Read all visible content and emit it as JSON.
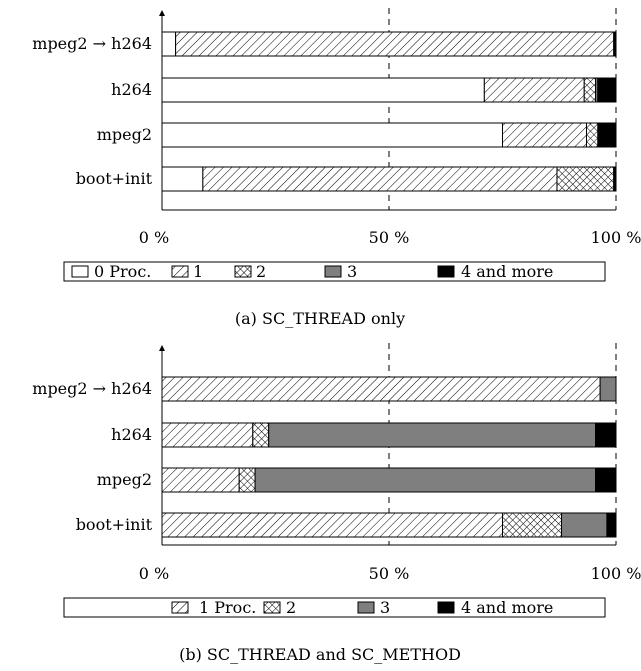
{
  "chart_data": [
    {
      "type": "bar",
      "orientation": "horizontal",
      "stacked": true,
      "caption": "(a) SC_THREAD only",
      "categories": [
        "mpeg2 → h264",
        "h264",
        "mpeg2",
        "boot+init"
      ],
      "xticks": [
        "0 %",
        "50 %",
        "100 %"
      ],
      "xlim": [
        0,
        100
      ],
      "legend_placement": "bottom",
      "series": [
        {
          "name": "0 Proc.",
          "pattern": "white",
          "values": [
            3,
            71,
            75,
            9
          ]
        },
        {
          "name": "1",
          "pattern": "hatch",
          "values": [
            96.5,
            22,
            18.5,
            78
          ]
        },
        {
          "name": "2",
          "pattern": "crosshatch",
          "values": [
            0,
            2.5,
            2.5,
            12.5
          ]
        },
        {
          "name": "3",
          "pattern": "gray",
          "values": [
            0,
            0.5,
            0,
            0
          ]
        },
        {
          "name": "4 and more",
          "pattern": "black",
          "values": [
            0.5,
            4,
            4,
            0.5
          ]
        }
      ]
    },
    {
      "type": "bar",
      "orientation": "horizontal",
      "stacked": true,
      "caption": "(b) SC_THREAD and SC_METHOD",
      "categories": [
        "mpeg2 → h264",
        "h264",
        "mpeg2",
        "boot+init"
      ],
      "xticks": [
        "0 %",
        "50 %",
        "100 %"
      ],
      "xlim": [
        0,
        100
      ],
      "legend_placement": "bottom",
      "series": [
        {
          "name": "1 Proc.",
          "pattern": "hatch",
          "values": [
            96.5,
            20,
            17,
            75
          ]
        },
        {
          "name": "2",
          "pattern": "crosshatch",
          "values": [
            0,
            3.5,
            3.5,
            13
          ]
        },
        {
          "name": "3",
          "pattern": "gray",
          "values": [
            3.5,
            72,
            75,
            10
          ]
        },
        {
          "name": "4 and more",
          "pattern": "black",
          "values": [
            0,
            4.5,
            4.5,
            2
          ]
        }
      ]
    }
  ]
}
